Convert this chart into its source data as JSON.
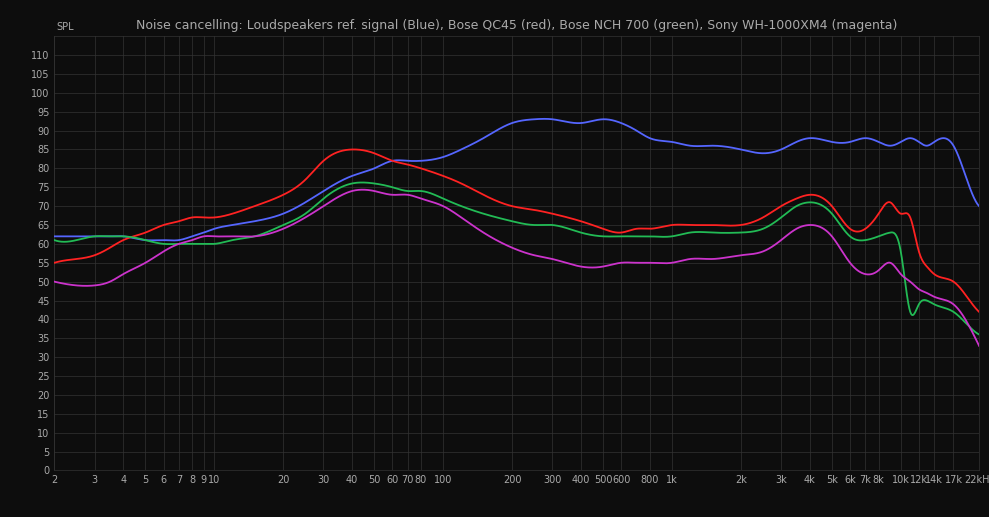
{
  "title": "Noise cancelling: Loudspeakers ref. signal (Blue), Bose QC45 (red), Bose NCH 700 (green), Sony WH-1000XM4 (magenta)",
  "background_color": "#0d0d0d",
  "grid_color": "#333333",
  "text_color": "#aaaaaa",
  "ylabel": "SPL",
  "xmin": 2,
  "xmax": 22000,
  "ymin": 0,
  "ymax": 115,
  "yticks": [
    0,
    5,
    10,
    15,
    20,
    25,
    30,
    35,
    40,
    45,
    50,
    55,
    60,
    65,
    70,
    75,
    80,
    85,
    90,
    95,
    100,
    105,
    110
  ],
  "xtick_positions": [
    2,
    3,
    4,
    5,
    6,
    7,
    8,
    9,
    10,
    20,
    30,
    40,
    50,
    60,
    70,
    80,
    100,
    200,
    300,
    400,
    500,
    600,
    800,
    1000,
    2000,
    3000,
    4000,
    5000,
    6000,
    7000,
    8000,
    10000,
    12000,
    14000,
    17000,
    22000
  ],
  "xtick_labels": [
    "2",
    "3",
    "4",
    "5",
    "6",
    "7",
    "8",
    "9",
    "10",
    "20",
    "30",
    "40",
    "50",
    "60",
    "70",
    "80",
    "100",
    "200",
    "300",
    "400",
    "500",
    "600",
    "800",
    "1k",
    "2k",
    "3k",
    "4k",
    "5k",
    "6k",
    "7k",
    "8k",
    "10k",
    "12k",
    "14k",
    "17k",
    "22kHz"
  ],
  "colors": {
    "blue": "#5566ff",
    "red": "#ff2222",
    "green": "#22bb55",
    "magenta": "#cc33cc"
  },
  "blue_freqs": [
    2,
    2.5,
    3,
    3.5,
    4,
    5,
    6,
    7,
    8,
    9,
    10,
    12,
    15,
    20,
    25,
    30,
    40,
    50,
    60,
    70,
    80,
    100,
    120,
    150,
    200,
    250,
    300,
    400,
    500,
    600,
    700,
    800,
    1000,
    1200,
    1500,
    2000,
    2500,
    3000,
    3500,
    4000,
    5000,
    6000,
    7000,
    8000,
    9000,
    10000,
    11000,
    12000,
    13000,
    14000,
    17000,
    20000,
    22000
  ],
  "blue_values": [
    62,
    62,
    62,
    62,
    62,
    61,
    61,
    61,
    62,
    63,
    64,
    65,
    66,
    68,
    71,
    74,
    78,
    80,
    82,
    82,
    82,
    83,
    85,
    88,
    92,
    93,
    93,
    92,
    93,
    92,
    90,
    88,
    87,
    86,
    86,
    85,
    84,
    85,
    87,
    88,
    87,
    87,
    88,
    87,
    86,
    87,
    88,
    87,
    86,
    87,
    86,
    75,
    70
  ],
  "red_freqs": [
    2,
    2.5,
    3,
    3.5,
    4,
    5,
    6,
    7,
    8,
    9,
    10,
    12,
    15,
    20,
    25,
    30,
    40,
    50,
    60,
    70,
    80,
    100,
    120,
    150,
    200,
    250,
    300,
    400,
    500,
    600,
    700,
    800,
    1000,
    1200,
    1500,
    2000,
    2500,
    3000,
    3500,
    4000,
    5000,
    6000,
    7000,
    8000,
    9000,
    10000,
    11000,
    12000,
    13000,
    14000,
    17000,
    20000,
    22000
  ],
  "red_values": [
    55,
    56,
    57,
    59,
    61,
    63,
    65,
    66,
    67,
    67,
    67,
    68,
    70,
    73,
    77,
    82,
    85,
    84,
    82,
    81,
    80,
    78,
    76,
    73,
    70,
    69,
    68,
    66,
    64,
    63,
    64,
    64,
    65,
    65,
    65,
    65,
    67,
    70,
    72,
    73,
    70,
    64,
    64,
    68,
    71,
    68,
    67,
    58,
    54,
    52,
    50,
    45,
    42
  ],
  "green_freqs": [
    2,
    2.5,
    3,
    3.5,
    4,
    5,
    6,
    7,
    8,
    9,
    10,
    12,
    15,
    20,
    25,
    30,
    40,
    50,
    60,
    70,
    80,
    100,
    120,
    150,
    200,
    250,
    300,
    400,
    500,
    600,
    700,
    800,
    1000,
    1200,
    1500,
    2000,
    2500,
    3000,
    3500,
    4000,
    5000,
    6000,
    7000,
    8000,
    9000,
    10000,
    11000,
    12000,
    13000,
    14000,
    17000,
    20000,
    22000
  ],
  "green_values": [
    61,
    61,
    62,
    62,
    62,
    61,
    60,
    60,
    60,
    60,
    60,
    61,
    62,
    65,
    68,
    72,
    76,
    76,
    75,
    74,
    74,
    72,
    70,
    68,
    66,
    65,
    65,
    63,
    62,
    62,
    62,
    62,
    62,
    63,
    63,
    63,
    64,
    67,
    70,
    71,
    68,
    62,
    61,
    62,
    63,
    58,
    42,
    44,
    45,
    44,
    42,
    38,
    36
  ],
  "magenta_freqs": [
    2,
    2.5,
    3,
    3.5,
    4,
    5,
    6,
    7,
    8,
    9,
    10,
    12,
    15,
    20,
    25,
    30,
    40,
    50,
    60,
    70,
    80,
    100,
    120,
    150,
    200,
    250,
    300,
    400,
    500,
    600,
    700,
    800,
    1000,
    1200,
    1500,
    2000,
    2500,
    3000,
    3500,
    4000,
    5000,
    6000,
    7000,
    8000,
    9000,
    10000,
    11000,
    12000,
    13000,
    14000,
    17000,
    20000,
    22000
  ],
  "magenta_values": [
    50,
    49,
    49,
    50,
    52,
    55,
    58,
    60,
    61,
    62,
    62,
    62,
    62,
    64,
    67,
    70,
    74,
    74,
    73,
    73,
    72,
    70,
    67,
    63,
    59,
    57,
    56,
    54,
    54,
    55,
    55,
    55,
    55,
    56,
    56,
    57,
    58,
    61,
    64,
    65,
    62,
    55,
    52,
    53,
    55,
    52,
    50,
    48,
    47,
    46,
    44,
    38,
    33
  ]
}
